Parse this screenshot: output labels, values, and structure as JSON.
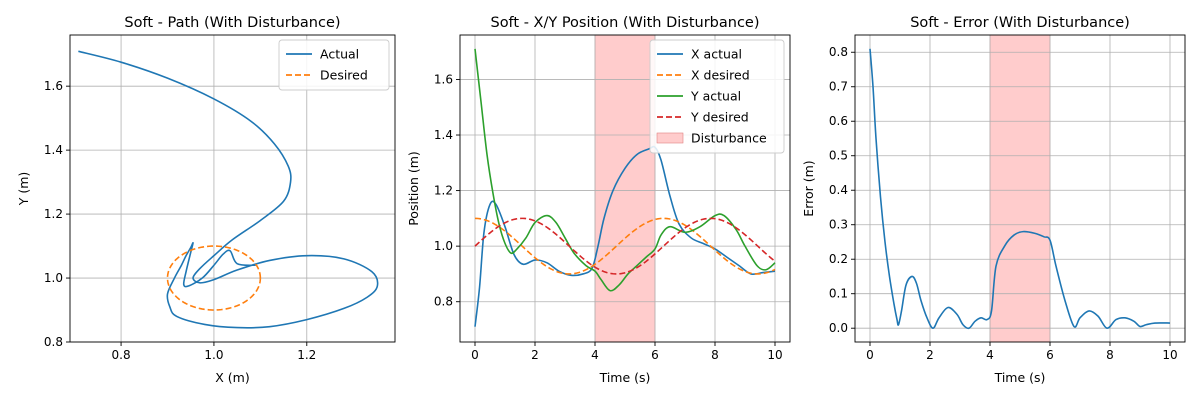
{
  "colors": {
    "blue": "#1f77b4",
    "orange": "#ff7f0e",
    "green": "#2ca02c",
    "red": "#d62728",
    "disturbance_fill": "#ffcccc",
    "grid": "#b0b0b0"
  },
  "chart_data": [
    {
      "type": "line",
      "title": "Soft - Path (With Disturbance)",
      "xlabel": "X (m)",
      "ylabel": "Y (m)",
      "xlim": [
        0.69,
        1.39
      ],
      "ylim": [
        0.8,
        1.76
      ],
      "xticks": [
        0.8,
        1.0,
        1.2
      ],
      "yticks": [
        0.8,
        1.0,
        1.2,
        1.4,
        1.6
      ],
      "xtick_labels": [
        "0.8",
        "1.0",
        "1.2"
      ],
      "ytick_labels": [
        "0.8",
        "1.0",
        "1.2",
        "1.4",
        "1.6"
      ],
      "grid": true,
      "legend_position": "top-right",
      "series": [
        {
          "name": "Actual",
          "color": "#1f77b4",
          "dash": "solid",
          "x": [
            0.708,
            0.8,
            0.9,
            1.0,
            1.08,
            1.13,
            1.16,
            1.165,
            1.15,
            1.1,
            1.04,
            1.0,
            0.97,
            0.955,
            0.97,
            1.0,
            1.05,
            1.12,
            1.2,
            1.28,
            1.34,
            1.352,
            1.33,
            1.28,
            1.2,
            1.12,
            1.05,
            0.98,
            0.92,
            0.905,
            0.9,
            0.915,
            0.93,
            0.94,
            0.95,
            0.955,
            0.95,
            0.94,
            0.935,
            0.945,
            0.975,
            1.0,
            1.02,
            1.035,
            1.05,
            1.09
          ],
          "y": [
            1.709,
            1.675,
            1.625,
            1.56,
            1.49,
            1.42,
            1.35,
            1.3,
            1.24,
            1.18,
            1.12,
            1.07,
            1.03,
            1.0,
            0.985,
            0.995,
            1.025,
            1.055,
            1.07,
            1.06,
            1.02,
            0.975,
            0.94,
            0.905,
            0.87,
            0.848,
            0.845,
            0.855,
            0.88,
            0.91,
            0.95,
            1.0,
            1.04,
            1.07,
            1.095,
            1.11,
            1.08,
            1.02,
            0.98,
            0.975,
            1.0,
            1.04,
            1.075,
            1.085,
            1.045,
            1.04
          ]
        },
        {
          "name": "Desired",
          "color": "#ff7f0e",
          "dash": "dashed",
          "ellipse": {
            "cx": 1.0,
            "cy": 1.0,
            "r": 0.1
          }
        }
      ]
    },
    {
      "type": "line",
      "title": "Soft - X/Y Position (With Disturbance)",
      "xlabel": "Time (s)",
      "ylabel": "Position (m)",
      "xlim": [
        -0.5,
        10.5
      ],
      "ylim": [
        0.655,
        1.76
      ],
      "xticks": [
        0,
        2,
        4,
        6,
        8,
        10
      ],
      "yticks": [
        0.8,
        1.0,
        1.2,
        1.4,
        1.6
      ],
      "xtick_labels": [
        "0",
        "2",
        "4",
        "6",
        "8",
        "10"
      ],
      "ytick_labels": [
        "0.8",
        "1.0",
        "1.2",
        "1.4",
        "1.6"
      ],
      "grid": true,
      "legend_position": "top-right",
      "shaded": {
        "name": "Disturbance",
        "from": 4,
        "to": 6
      },
      "series": [
        {
          "name": "X actual",
          "color": "#1f77b4",
          "dash": "solid",
          "x": [
            0,
            0.15,
            0.3,
            0.5,
            0.7,
            1.0,
            1.3,
            1.6,
            2.0,
            2.4,
            2.8,
            3.2,
            3.6,
            3.9,
            4.1,
            4.3,
            4.6,
            5.0,
            5.4,
            5.8,
            6.0,
            6.2,
            6.5,
            6.8,
            7.2,
            7.6,
            8.0,
            8.4,
            8.8,
            9.2,
            9.6,
            10.0
          ],
          "y": [
            0.71,
            0.85,
            1.05,
            1.15,
            1.15,
            1.07,
            0.97,
            0.935,
            0.95,
            0.94,
            0.91,
            0.895,
            0.9,
            0.92,
            1.0,
            1.1,
            1.2,
            1.28,
            1.33,
            1.35,
            1.356,
            1.31,
            1.18,
            1.08,
            1.03,
            1.01,
            0.99,
            0.96,
            0.93,
            0.9,
            0.905,
            0.91
          ]
        },
        {
          "name": "X desired",
          "color": "#ff7f0e",
          "dash": "dashed",
          "func": "cos"
        },
        {
          "name": "Y actual",
          "color": "#2ca02c",
          "dash": "solid",
          "x": [
            0,
            0.2,
            0.4,
            0.6,
            0.8,
            1.0,
            1.2,
            1.4,
            1.7,
            2.0,
            2.4,
            2.7,
            3.0,
            3.3,
            3.7,
            4.0,
            4.2,
            4.5,
            4.8,
            5.1,
            5.4,
            5.7,
            6.0,
            6.2,
            6.5,
            7.0,
            7.5,
            8.0,
            8.3,
            8.7,
            9.0,
            9.4,
            9.7,
            10.0
          ],
          "y": [
            1.71,
            1.52,
            1.33,
            1.19,
            1.08,
            1.01,
            0.975,
            0.99,
            1.03,
            1.085,
            1.11,
            1.085,
            1.03,
            0.975,
            0.93,
            0.91,
            0.88,
            0.84,
            0.86,
            0.9,
            0.93,
            0.96,
            0.99,
            1.04,
            1.07,
            1.05,
            1.07,
            1.11,
            1.11,
            1.06,
            1.0,
            0.93,
            0.915,
            0.94
          ]
        },
        {
          "name": "Y desired",
          "color": "#d62728",
          "dash": "dashed",
          "func": "sin"
        }
      ]
    },
    {
      "type": "line",
      "title": "Soft - Error (With Disturbance)",
      "xlabel": "Time (s)",
      "ylabel": "Error (m)",
      "xlim": [
        -0.5,
        10.5
      ],
      "ylim": [
        -0.04,
        0.85
      ],
      "xticks": [
        0,
        2,
        4,
        6,
        8,
        10
      ],
      "yticks": [
        0.0,
        0.1,
        0.2,
        0.3,
        0.4,
        0.5,
        0.6,
        0.7,
        0.8
      ],
      "xtick_labels": [
        "0",
        "2",
        "4",
        "6",
        "8",
        "10"
      ],
      "ytick_labels": [
        "0.0",
        "0.1",
        "0.2",
        "0.3",
        "0.4",
        "0.5",
        "0.6",
        "0.7",
        "0.8"
      ],
      "grid": true,
      "shaded": {
        "name": "Disturbance",
        "from": 4,
        "to": 6
      },
      "series": [
        {
          "name": "Error",
          "color": "#1f77b4",
          "dash": "solid",
          "x": [
            0,
            0.1,
            0.2,
            0.35,
            0.5,
            0.65,
            0.8,
            0.9,
            0.95,
            1.05,
            1.2,
            1.4,
            1.55,
            1.7,
            1.9,
            2.1,
            2.3,
            2.6,
            2.9,
            3.1,
            3.3,
            3.5,
            3.7,
            3.9,
            4.05,
            4.2,
            4.5,
            4.8,
            5.1,
            5.5,
            5.8,
            6.0,
            6.2,
            6.5,
            6.8,
            7.0,
            7.3,
            7.6,
            7.9,
            8.2,
            8.5,
            8.8,
            9.0,
            9.2,
            9.5,
            10.0
          ],
          "y": [
            0.81,
            0.7,
            0.55,
            0.38,
            0.25,
            0.15,
            0.07,
            0.025,
            0.01,
            0.05,
            0.125,
            0.15,
            0.13,
            0.08,
            0.03,
            0.0,
            0.03,
            0.06,
            0.04,
            0.01,
            0.0,
            0.02,
            0.03,
            0.025,
            0.05,
            0.18,
            0.24,
            0.27,
            0.28,
            0.275,
            0.265,
            0.255,
            0.18,
            0.08,
            0.005,
            0.03,
            0.05,
            0.035,
            0.0,
            0.025,
            0.03,
            0.02,
            0.005,
            0.01,
            0.015,
            0.015
          ]
        }
      ]
    }
  ]
}
